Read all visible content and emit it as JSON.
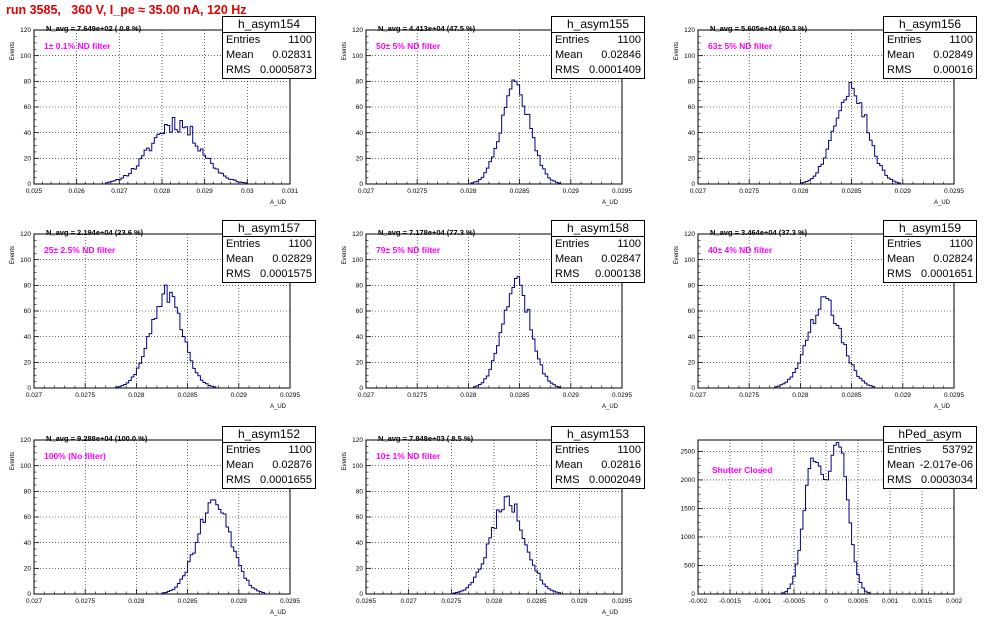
{
  "page": {
    "title": "run 3585,   360 V, I_pe ≈ 35.00 nA, 120 Hz",
    "histogram_color": "#00008b",
    "annotation_color": "#ff00ff"
  },
  "chart_data": [
    {
      "type": "histogram",
      "name": "h_asym154",
      "title": "N_avg = 7.649e+02 ( 0.8 %)",
      "annotation": "1± 0.1% ND filter",
      "xlabel": "A_UD",
      "ylabel": "Events",
      "xlim": [
        0.025,
        0.031
      ],
      "ylim": [
        0,
        120
      ],
      "xticks": [
        0.025,
        0.026,
        0.027,
        0.028,
        0.029,
        0.03,
        0.031
      ],
      "xtick_labels": [
        "0.025",
        "0.026",
        "0.027",
        "0.028",
        "0.029",
        "0.03",
        "0.031"
      ],
      "yticks": [
        0,
        20,
        40,
        60,
        80,
        100,
        120
      ],
      "grid": true,
      "stats": {
        "entries": "1100",
        "mean": "0.02831",
        "rms": "0.0005873"
      },
      "shape": {
        "center": 0.02831,
        "sigma": 0.00058,
        "peak": 48,
        "noise": 0.16,
        "seed": 11
      }
    },
    {
      "type": "histogram",
      "name": "h_asym155",
      "title": "N_avg = 4.413e+04 (47.5 %)",
      "annotation": "50± 5% ND filter",
      "xlabel": "A_UD",
      "ylabel": "Events",
      "xlim": [
        0.027,
        0.0295
      ],
      "ylim": [
        0,
        120
      ],
      "xticks": [
        0.027,
        0.0275,
        0.028,
        0.0285,
        0.029,
        0.0295
      ],
      "xtick_labels": [
        "0.027",
        "0.0275",
        "0.028",
        "0.0285",
        "0.029",
        "0.0295"
      ],
      "yticks": [
        0,
        20,
        40,
        60,
        80,
        100,
        120
      ],
      "grid": true,
      "stats": {
        "entries": "1100",
        "mean": "0.02846",
        "rms": "0.0001409"
      },
      "shape": {
        "center": 0.02846,
        "sigma": 0.000141,
        "peak": 76,
        "noise": 0.1,
        "seed": 22
      }
    },
    {
      "type": "histogram",
      "name": "h_asym156",
      "title": "N_avg = 5.605e+04 (60.3 %)",
      "annotation": "63± 5% ND filter",
      "xlabel": "A_UD",
      "ylabel": "Events",
      "xlim": [
        0.027,
        0.0295
      ],
      "ylim": [
        0,
        120
      ],
      "xticks": [
        0.027,
        0.0275,
        0.028,
        0.0285,
        0.029,
        0.0295
      ],
      "xtick_labels": [
        "0.027",
        "0.0275",
        "0.028",
        "0.0285",
        "0.029",
        "0.0295"
      ],
      "yticks": [
        0,
        20,
        40,
        60,
        80,
        100,
        120
      ],
      "grid": true,
      "stats": {
        "entries": "1100",
        "mean": "0.02849",
        "rms": "0.00016"
      },
      "shape": {
        "center": 0.02849,
        "sigma": 0.00016,
        "peak": 75,
        "noise": 0.1,
        "seed": 33
      }
    },
    {
      "type": "histogram",
      "name": "h_asym157",
      "title": "N_avg = 2.194e+04 (23.6 %)",
      "annotation": "25± 2.5% ND filter",
      "xlabel": "A_UD",
      "ylabel": "Events",
      "xlim": [
        0.027,
        0.0295
      ],
      "ylim": [
        0,
        120
      ],
      "xticks": [
        0.027,
        0.0275,
        0.028,
        0.0285,
        0.029,
        0.0295
      ],
      "xtick_labels": [
        "0.027",
        "0.0275",
        "0.028",
        "0.0285",
        "0.029",
        "0.0295"
      ],
      "yticks": [
        0,
        20,
        40,
        60,
        80,
        100,
        120
      ],
      "grid": true,
      "stats": {
        "entries": "1100",
        "mean": "0.02829",
        "rms": "0.0001575"
      },
      "shape": {
        "center": 0.02829,
        "sigma": 0.000158,
        "peak": 73,
        "noise": 0.1,
        "seed": 44
      }
    },
    {
      "type": "histogram",
      "name": "h_asym158",
      "title": "N_avg = 7.178e+04 (77.3 %)",
      "annotation": "79± 5% ND filter",
      "xlabel": "A_UD",
      "ylabel": "Events",
      "xlim": [
        0.027,
        0.0295
      ],
      "ylim": [
        0,
        120
      ],
      "xticks": [
        0.027,
        0.0275,
        0.028,
        0.0285,
        0.029,
        0.0295
      ],
      "xtick_labels": [
        "0.027",
        "0.0275",
        "0.028",
        "0.0285",
        "0.029",
        "0.0295"
      ],
      "yticks": [
        0,
        20,
        40,
        60,
        80,
        100,
        120
      ],
      "grid": true,
      "stats": {
        "entries": "1100",
        "mean": "0.02847",
        "rms": "0.000138"
      },
      "shape": {
        "center": 0.02847,
        "sigma": 0.000138,
        "peak": 80,
        "noise": 0.1,
        "seed": 55
      }
    },
    {
      "type": "histogram",
      "name": "h_asym159",
      "title": "N_avg = 3.464e+04 (37.3 %)",
      "annotation": "40± 4% ND filter",
      "xlabel": "A_UD",
      "ylabel": "Events",
      "xlim": [
        0.027,
        0.0295
      ],
      "ylim": [
        0,
        120
      ],
      "xticks": [
        0.027,
        0.0275,
        0.028,
        0.0285,
        0.029,
        0.0295
      ],
      "xtick_labels": [
        "0.027",
        "0.0275",
        "0.028",
        "0.0285",
        "0.029",
        "0.0295"
      ],
      "yticks": [
        0,
        20,
        40,
        60,
        80,
        100,
        120
      ],
      "grid": true,
      "stats": {
        "entries": "1100",
        "mean": "0.02824",
        "rms": "0.0001651"
      },
      "shape": {
        "center": 0.02824,
        "sigma": 0.000165,
        "peak": 66,
        "noise": 0.1,
        "seed": 66
      }
    },
    {
      "type": "histogram",
      "name": "h_asym152",
      "title": "N_avg = 9.288e+04 (100.0 %)",
      "annotation": "100% (No filter)",
      "xlabel": "A_UD",
      "ylabel": "Events",
      "xlim": [
        0.027,
        0.0295
      ],
      "ylim": [
        0,
        120
      ],
      "xticks": [
        0.027,
        0.0275,
        0.028,
        0.0285,
        0.029,
        0.0295
      ],
      "xtick_labels": [
        "0.027",
        "0.0275",
        "0.028",
        "0.0285",
        "0.029",
        "0.0295"
      ],
      "yticks": [
        0,
        20,
        40,
        60,
        80,
        100,
        120
      ],
      "grid": true,
      "stats": {
        "entries": "1100",
        "mean": "0.02876",
        "rms": "0.0001655"
      },
      "shape": {
        "center": 0.02876,
        "sigma": 0.000166,
        "peak": 70,
        "noise": 0.1,
        "seed": 77
      }
    },
    {
      "type": "histogram",
      "name": "h_asym153",
      "title": "N_avg = 7.848e+03 ( 8.5 %)",
      "annotation": "10± 1% ND filter",
      "xlabel": "A_UD",
      "ylabel": "Events",
      "xlim": [
        0.0265,
        0.0295
      ],
      "ylim": [
        0,
        120
      ],
      "xticks": [
        0.0265,
        0.027,
        0.0275,
        0.028,
        0.0285,
        0.029,
        0.0295
      ],
      "xtick_labels": [
        "0.0265",
        "0.027",
        "0.0275",
        "0.028",
        "0.0285",
        "0.029",
        "0.0295"
      ],
      "yticks": [
        0,
        20,
        40,
        60,
        80,
        100,
        120
      ],
      "grid": true,
      "stats": {
        "entries": "1100",
        "mean": "0.02816",
        "rms": "0.0002049"
      },
      "shape": {
        "center": 0.02816,
        "sigma": 0.000205,
        "peak": 72,
        "noise": 0.1,
        "seed": 88
      }
    },
    {
      "type": "histogram",
      "name": "hPed_asym",
      "title": "",
      "annotation": "Shutter Closed",
      "xlabel": "",
      "ylabel": "",
      "xlim": [
        -0.002,
        0.002
      ],
      "ylim": [
        0,
        2700
      ],
      "xticks": [
        -0.002,
        -0.0015,
        -0.001,
        -0.0005,
        0,
        0.0005,
        0.001,
        0.0015,
        0.002
      ],
      "xtick_labels": [
        "-0.002",
        "-0.0015",
        "-0.001",
        "-0.0005",
        "0",
        "0.0005",
        "0.001",
        "0.0015",
        "0.002"
      ],
      "yticks": [
        0,
        500,
        1000,
        1500,
        2000,
        2500
      ],
      "grid": true,
      "stats": {
        "entries": "53792",
        "mean": "-2.017e-06",
        "rms": "0.0003034"
      },
      "shape": {
        "bimodal": true,
        "peaks": [
          {
            "center": -0.0002,
            "sigma": 0.00015,
            "peak": 2300
          },
          {
            "center": 0.0002,
            "sigma": 0.00015,
            "peak": 2580
          }
        ],
        "noise": 0.03,
        "seed": 99
      }
    }
  ]
}
